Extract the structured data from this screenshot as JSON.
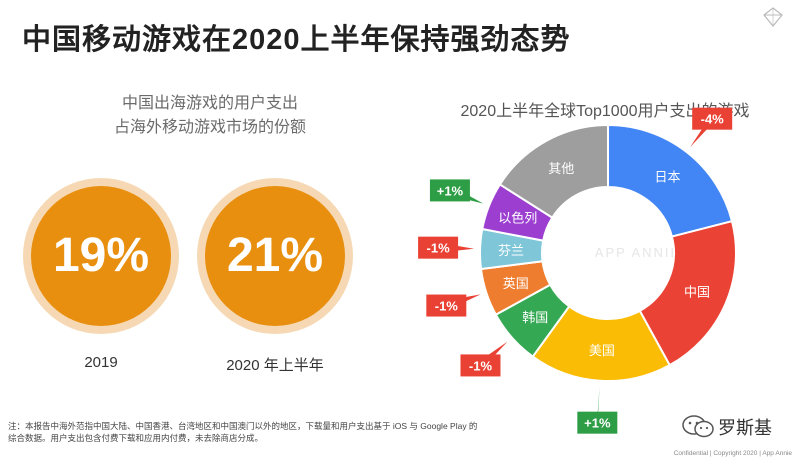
{
  "header": {
    "title": "中国移动游戏在2020上半年保持强劲态势"
  },
  "left_panel": {
    "subtitle_line1": "中国出海游戏的用户支出",
    "subtitle_line2": "占海外移动游戏市场的份额",
    "items": [
      {
        "value": "19%",
        "label": "2019"
      },
      {
        "value": "21%",
        "label": "2020 年上半年"
      }
    ],
    "circle_color": "#e88f10"
  },
  "chart_data": {
    "type": "pie",
    "title": "2020上半年全球Top1000用户支出的游戏",
    "categories": [
      "日本",
      "中国",
      "美国",
      "韩国",
      "英国",
      "芬兰",
      "以色列",
      "其他"
    ],
    "values": [
      21,
      21,
      18,
      7,
      6,
      5,
      6,
      16
    ],
    "colors": [
      "#4285f4",
      "#ea4335",
      "#fbbc05",
      "#34a853",
      "#ee7d2f",
      "#7fc6d9",
      "#9c3fd0",
      "#9e9e9e"
    ],
    "changes": [
      "-4%",
      "",
      "+1%",
      "-1%",
      "-1%",
      "-1%",
      "+1%",
      ""
    ],
    "change_colors": {
      "positive": "#2e9e46",
      "negative": "#e94235"
    },
    "watermark": "APP ANNIE"
  },
  "footer": {
    "note_line1": "注：本报告中海外范指中国大陆、中国香港、台湾地区和中国澳门以外的地区，下载量和用户支出基于 iOS 与 Google Play 的",
    "note_line2": "综合数据。用户支出包含付费下载和应用内付费，未去除商店分成。",
    "confidential": "Confidential | Copyright 2020 | App Annie",
    "wechat_name": "罗斯基"
  }
}
